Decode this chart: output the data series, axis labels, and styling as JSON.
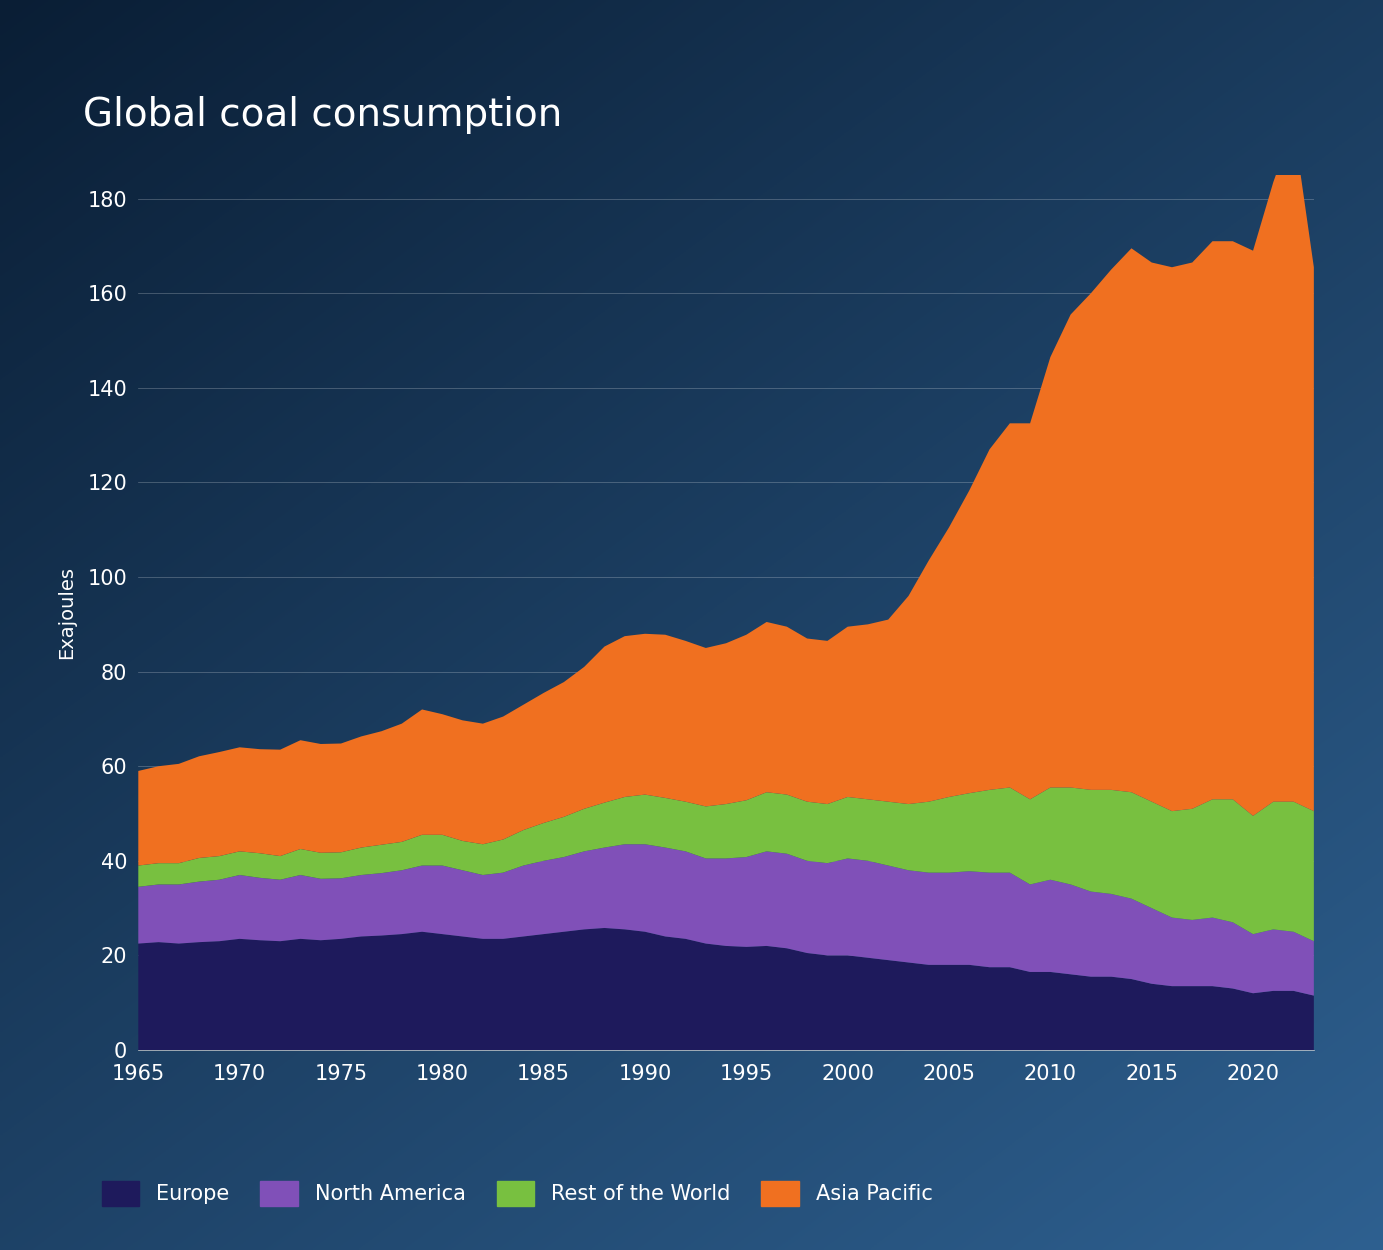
{
  "title": "Global coal consumption",
  "ylabel": "Exajoules",
  "years": [
    1965,
    1966,
    1967,
    1968,
    1969,
    1970,
    1971,
    1972,
    1973,
    1974,
    1975,
    1976,
    1977,
    1978,
    1979,
    1980,
    1981,
    1982,
    1983,
    1984,
    1985,
    1986,
    1987,
    1988,
    1989,
    1990,
    1991,
    1992,
    1993,
    1994,
    1995,
    1996,
    1997,
    1998,
    1999,
    2000,
    2001,
    2002,
    2003,
    2004,
    2005,
    2006,
    2007,
    2008,
    2009,
    2010,
    2011,
    2012,
    2013,
    2014,
    2015,
    2016,
    2017,
    2018,
    2019,
    2020,
    2021,
    2022,
    2023
  ],
  "europe": [
    22.5,
    22.8,
    22.5,
    22.8,
    23.0,
    23.5,
    23.2,
    23.0,
    23.5,
    23.2,
    23.5,
    24.0,
    24.2,
    24.5,
    25.0,
    24.5,
    24.0,
    23.5,
    23.5,
    24.0,
    24.5,
    25.0,
    25.5,
    25.8,
    25.5,
    25.0,
    24.0,
    23.5,
    22.5,
    22.0,
    21.8,
    22.0,
    21.5,
    20.5,
    20.0,
    20.0,
    19.5,
    19.0,
    18.5,
    18.0,
    18.0,
    18.0,
    17.5,
    17.5,
    16.5,
    16.5,
    16.0,
    15.5,
    15.5,
    15.0,
    14.0,
    13.5,
    13.5,
    13.5,
    13.0,
    12.0,
    12.5,
    12.5,
    11.5
  ],
  "north_america": [
    12.0,
    12.2,
    12.5,
    12.8,
    13.0,
    13.5,
    13.2,
    13.0,
    13.5,
    13.0,
    12.8,
    13.0,
    13.2,
    13.5,
    14.0,
    14.5,
    14.0,
    13.5,
    14.0,
    15.0,
    15.5,
    15.8,
    16.5,
    17.0,
    18.0,
    18.5,
    18.8,
    18.5,
    18.0,
    18.5,
    19.0,
    20.0,
    20.0,
    19.5,
    19.5,
    20.5,
    20.5,
    20.0,
    19.5,
    19.5,
    19.5,
    19.8,
    20.0,
    20.0,
    18.5,
    19.5,
    19.0,
    18.0,
    17.5,
    17.0,
    16.0,
    14.5,
    14.0,
    14.5,
    14.0,
    12.5,
    13.0,
    12.5,
    11.5
  ],
  "rest_of_world": [
    4.5,
    4.5,
    4.5,
    5.0,
    5.0,
    5.0,
    5.2,
    5.0,
    5.5,
    5.5,
    5.5,
    5.8,
    6.0,
    6.0,
    6.5,
    6.5,
    6.2,
    6.5,
    7.0,
    7.5,
    8.0,
    8.5,
    9.0,
    9.5,
    10.0,
    10.5,
    10.5,
    10.5,
    11.0,
    11.5,
    12.0,
    12.5,
    12.5,
    12.5,
    12.5,
    13.0,
    13.0,
    13.5,
    14.0,
    15.0,
    16.0,
    16.5,
    17.5,
    18.0,
    18.0,
    19.5,
    20.5,
    21.5,
    22.0,
    22.5,
    22.5,
    22.5,
    23.5,
    25.0,
    26.0,
    25.0,
    27.0,
    27.5,
    27.5
  ],
  "asia_pacific": [
    20.0,
    20.5,
    21.0,
    21.5,
    22.0,
    22.0,
    22.0,
    22.5,
    23.0,
    23.0,
    23.0,
    23.5,
    24.0,
    25.0,
    26.5,
    25.5,
    25.5,
    25.5,
    26.0,
    26.5,
    27.5,
    28.5,
    30.0,
    33.0,
    34.0,
    34.0,
    34.5,
    34.0,
    33.5,
    34.0,
    35.0,
    36.0,
    35.5,
    34.5,
    34.5,
    36.0,
    37.0,
    38.5,
    44.0,
    51.0,
    57.0,
    64.0,
    72.0,
    77.0,
    79.5,
    91.0,
    100.0,
    105.0,
    110.0,
    115.0,
    114.0,
    115.0,
    115.5,
    118.0,
    118.0,
    119.5,
    131.0,
    143.0,
    115.0
  ],
  "colors": {
    "europe": "#1e1a5c",
    "north_america": "#8050b8",
    "rest_of_world": "#78c040",
    "asia_pacific": "#f07020"
  },
  "legend_labels": [
    "Europe",
    "North America",
    "Rest of the World",
    "Asia Pacific"
  ],
  "ylim": [
    0,
    185
  ],
  "yticks": [
    0,
    20,
    40,
    60,
    80,
    100,
    120,
    140,
    160,
    180
  ],
  "xticks": [
    1965,
    1970,
    1975,
    1980,
    1985,
    1990,
    1995,
    2000,
    2005,
    2010,
    2015,
    2020
  ],
  "title_fontsize": 28,
  "label_fontsize": 14,
  "tick_fontsize": 15
}
